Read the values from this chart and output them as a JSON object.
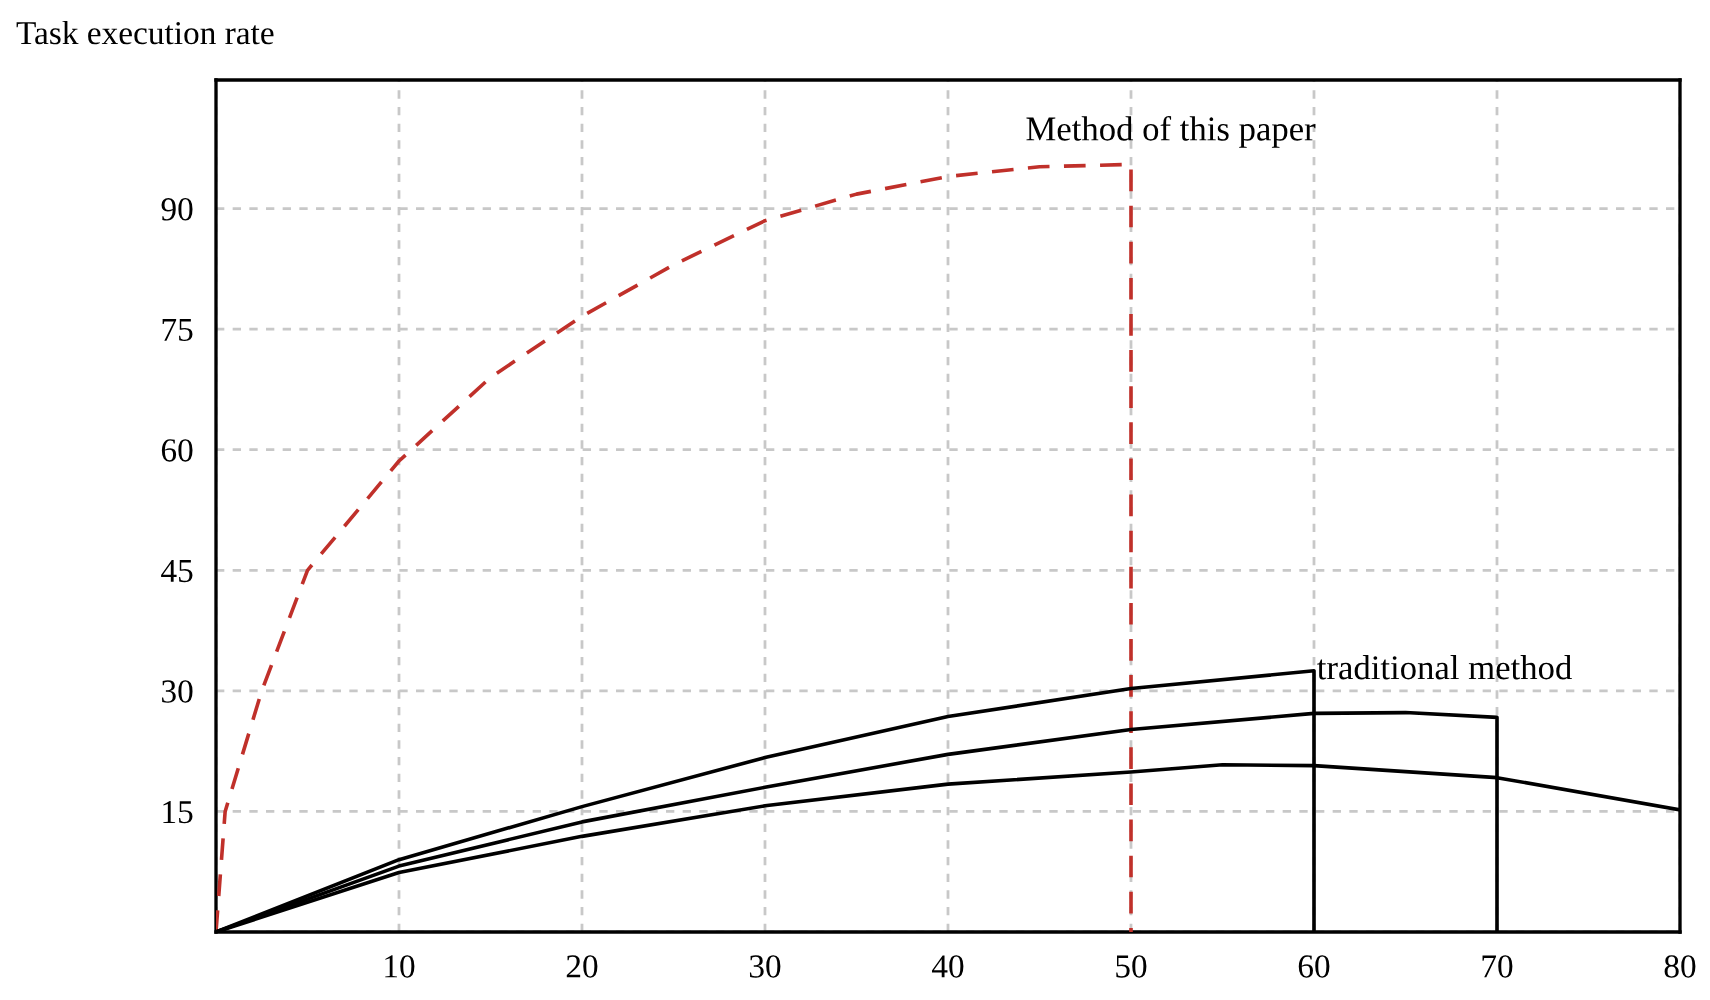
{
  "chart_data": {
    "type": "line",
    "ylabel": "Task execution rate",
    "xlim": [
      0,
      80
    ],
    "xticks": [
      {
        "value": 0,
        "label": null
      },
      10,
      20,
      30,
      40,
      50,
      60,
      70,
      80
    ],
    "ylim": [
      0,
      106
    ],
    "yticks": [
      {
        "value": 0,
        "label": null
      },
      15,
      30,
      45,
      60,
      75,
      90
    ],
    "grid": true,
    "marker": "none",
    "series": [
      {
        "color": "#c0302a",
        "line_style": "dashed",
        "x": [
          0,
          0.5,
          2.5,
          5,
          10,
          15,
          20,
          25,
          30,
          35,
          40,
          45,
          50,
          50
        ],
        "values": [
          0,
          15,
          30,
          45,
          58.6,
          69,
          76.6,
          83,
          88.5,
          91.8,
          94,
          95.2,
          95.5,
          0
        ]
      },
      {
        "color": "#000000",
        "line_style": "solid",
        "x": [
          0,
          10,
          20,
          30,
          40,
          50,
          60,
          60
        ],
        "values": [
          0,
          9,
          15.6,
          21.7,
          26.8,
          30.3,
          32.5,
          0
        ]
      },
      {
        "color": "#000000",
        "line_style": "solid",
        "x": [
          0,
          10,
          20,
          30,
          40,
          50,
          60,
          65,
          70,
          70
        ],
        "values": [
          0,
          8.2,
          13.7,
          18,
          22.1,
          25.2,
          27.2,
          27.3,
          26.7,
          0
        ]
      },
      {
        "color": "#000000",
        "line_style": "solid",
        "x": [
          0,
          10,
          20,
          30,
          40,
          50,
          55,
          60,
          70,
          80
        ],
        "values": [
          0,
          7.4,
          11.9,
          15.7,
          18.4,
          19.9,
          20.8,
          20.7,
          19.2,
          15.2
        ]
      }
    ],
    "annotations": [
      {
        "text": "Method of this paper",
        "x": 50,
        "y": 95.5
      },
      {
        "text": "traditional method",
        "x": 60,
        "y": 32.5
      }
    ]
  }
}
